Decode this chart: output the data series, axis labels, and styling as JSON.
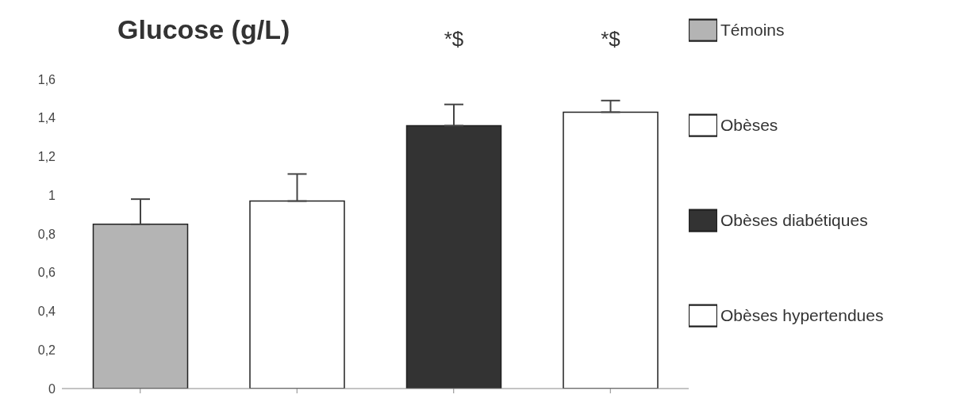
{
  "chart_data": {
    "type": "bar",
    "title": "Glucose (g/L)",
    "categories": [
      null,
      null,
      null,
      null
    ],
    "stacked": true,
    "legend": "right",
    "series": [
      {
        "name": "Témoins",
        "color": "#b4b4b4",
        "values": [
          0.85,
          null,
          null,
          null
        ],
        "errors": [
          [
            0.85,
            0.98
          ],
          null,
          null,
          null
        ]
      },
      {
        "name": "Obèses",
        "color": "#ffffff",
        "values": [
          null,
          0.97,
          null,
          null
        ],
        "errors": [
          null,
          [
            0.97,
            1.11
          ],
          null,
          null
        ]
      },
      {
        "name": "Obèses diabétiques",
        "color": "#333333",
        "values": [
          null,
          null,
          1.36,
          null
        ],
        "errors": [
          null,
          null,
          [
            1.36,
            1.47
          ],
          null
        ]
      },
      {
        "name": "Obèses hypertendues",
        "color": "#ffffff",
        "values": [
          null,
          null,
          null,
          1.43
        ],
        "errors": [
          null,
          null,
          null,
          [
            1.43,
            1.49
          ]
        ]
      }
    ],
    "ylim": [
      0,
      1.6
    ],
    "yticks": [
      0,
      {
        "value": 0.2,
        "label": "0,2"
      },
      {
        "value": 0.4,
        "label": "0,4"
      },
      {
        "value": 0.6,
        "label": "0,6"
      },
      {
        "value": 0.8,
        "label": "0,8"
      },
      1,
      {
        "value": 1.2,
        "label": "1,2"
      },
      {
        "value": 1.4,
        "label": "1,4"
      },
      {
        "value": 1.6,
        "label": "1,6"
      }
    ],
    "annotations": [
      "*$",
      "*$"
    ]
  }
}
